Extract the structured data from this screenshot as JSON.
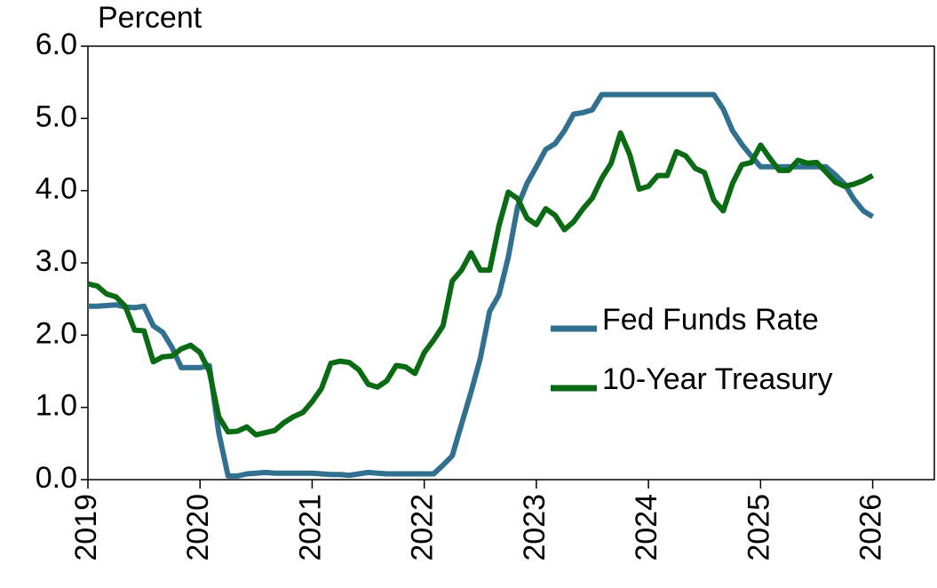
{
  "chart_data": {
    "type": "line",
    "y_label": "Percent",
    "x": [
      2019,
      2019.083,
      2019.167,
      2019.25,
      2019.333,
      2019.417,
      2019.5,
      2019.583,
      2019.667,
      2019.75,
      2019.833,
      2019.917,
      2020,
      2020.083,
      2020.167,
      2020.25,
      2020.333,
      2020.417,
      2020.5,
      2020.583,
      2020.667,
      2020.75,
      2020.833,
      2020.917,
      2021,
      2021.083,
      2021.167,
      2021.25,
      2021.333,
      2021.417,
      2021.5,
      2021.583,
      2021.667,
      2021.75,
      2021.833,
      2021.917,
      2022,
      2022.083,
      2022.167,
      2022.25,
      2022.333,
      2022.417,
      2022.5,
      2022.583,
      2022.667,
      2022.75,
      2022.833,
      2022.917,
      2023,
      2023.083,
      2023.167,
      2023.25,
      2023.333,
      2023.417,
      2023.5,
      2023.583,
      2023.667,
      2023.75,
      2023.833,
      2023.917,
      2024,
      2024.083,
      2024.167,
      2024.25,
      2024.333,
      2024.417,
      2024.5,
      2024.583,
      2024.667,
      2024.75,
      2024.833,
      2024.917,
      2025,
      2025.083,
      2025.167,
      2025.25,
      2025.333,
      2025.417,
      2025.5,
      2025.583,
      2025.667,
      2025.75,
      2025.833,
      2025.917,
      2026
    ],
    "series": [
      {
        "name": "Fed Funds Rate",
        "color": "#31708f",
        "values": [
          2.4,
          2.4,
          2.41,
          2.42,
          2.39,
          2.38,
          2.4,
          2.13,
          2.04,
          1.83,
          1.55,
          1.55,
          1.55,
          1.58,
          0.65,
          0.05,
          0.05,
          0.08,
          0.09,
          0.1,
          0.09,
          0.09,
          0.09,
          0.09,
          0.09,
          0.08,
          0.07,
          0.07,
          0.06,
          0.08,
          0.1,
          0.09,
          0.08,
          0.08,
          0.08,
          0.08,
          0.08,
          0.08,
          0.2,
          0.33,
          0.77,
          1.21,
          1.68,
          2.33,
          2.56,
          3.08,
          3.78,
          4.1,
          4.33,
          4.57,
          4.65,
          4.83,
          5.06,
          5.08,
          5.12,
          5.33,
          5.33,
          5.33,
          5.33,
          5.33,
          5.33,
          5.33,
          5.33,
          5.33,
          5.33,
          5.33,
          5.33,
          5.33,
          5.13,
          4.83,
          4.64,
          4.48,
          4.33,
          4.33,
          4.33,
          4.33,
          4.33,
          4.33,
          4.33,
          4.33,
          4.22,
          4.09,
          3.88,
          3.72,
          3.64
        ]
      },
      {
        "name": "10-Year Treasury",
        "color": "#0a6b14",
        "values": [
          2.71,
          2.68,
          2.57,
          2.53,
          2.4,
          2.07,
          2.06,
          1.63,
          1.7,
          1.71,
          1.81,
          1.86,
          1.76,
          1.5,
          0.87,
          0.66,
          0.67,
          0.73,
          0.62,
          0.65,
          0.68,
          0.79,
          0.87,
          0.93,
          1.08,
          1.26,
          1.61,
          1.64,
          1.62,
          1.52,
          1.32,
          1.28,
          1.37,
          1.58,
          1.56,
          1.47,
          1.76,
          1.93,
          2.13,
          2.75,
          2.9,
          3.14,
          2.9,
          2.9,
          3.52,
          3.98,
          3.89,
          3.62,
          3.53,
          3.75,
          3.66,
          3.46,
          3.57,
          3.75,
          3.9,
          4.17,
          4.38,
          4.8,
          4.5,
          4.02,
          4.06,
          4.21,
          4.21,
          4.54,
          4.48,
          4.31,
          4.25,
          3.87,
          3.72,
          4.1,
          4.36,
          4.39,
          4.63,
          4.45,
          4.28,
          4.28,
          4.42,
          4.38,
          4.39,
          4.26,
          4.12,
          4.06,
          4.09,
          4.14,
          4.21
        ]
      }
    ],
    "xlim": [
      2019,
      2026.55
    ],
    "xticks": [
      2019,
      2020,
      2021,
      2022,
      2023,
      2024,
      2025,
      2026
    ],
    "ylim": [
      0,
      6
    ],
    "yticks": [
      {
        "value": 0,
        "label": "0.0"
      },
      {
        "value": 1,
        "label": "1.0"
      },
      {
        "value": 2,
        "label": "2.0"
      },
      {
        "value": 3,
        "label": "3.0"
      },
      {
        "value": 4,
        "label": "4.0"
      },
      {
        "value": 5,
        "label": "5.0"
      },
      {
        "value": 6,
        "label": "6.0"
      }
    ],
    "grid": false,
    "legend": "right"
  }
}
